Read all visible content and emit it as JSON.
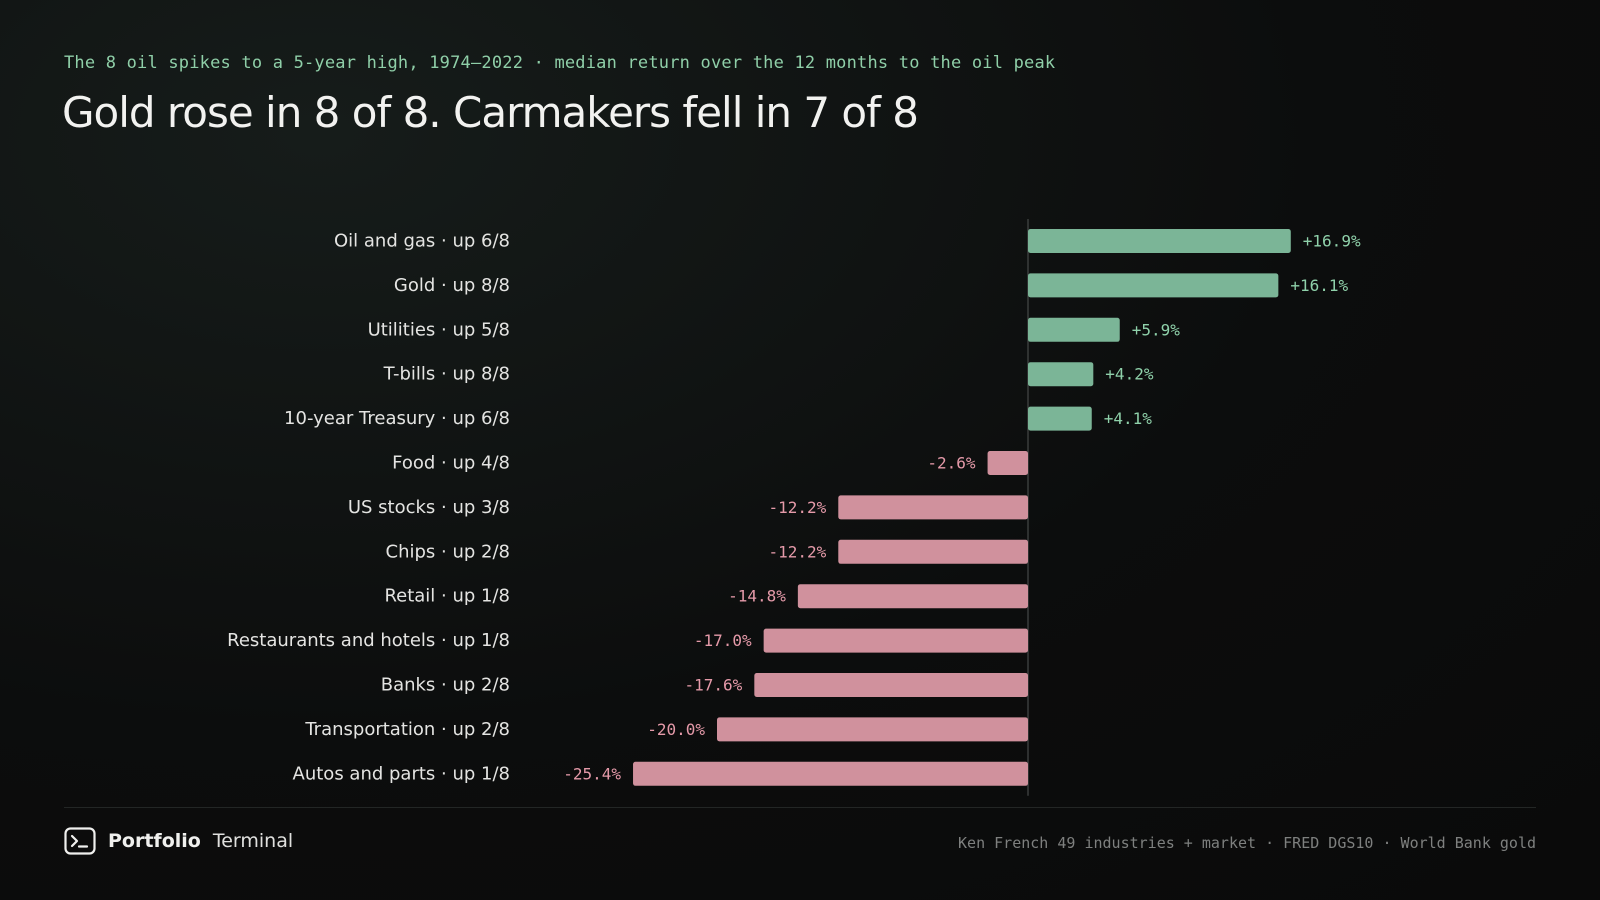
{
  "header": {
    "subtitle": "The 8 oil spikes to a 5-year high, 1974–2022 · median return over the 12 months to the oil peak",
    "title": "Gold rose in 8 of 8. Carmakers fell in 7 of 8"
  },
  "chart_data": {
    "type": "bar",
    "orientation": "horizontal",
    "unit": "%",
    "colors": {
      "positive": "#7bb597",
      "negative": "#d0919d",
      "positive_text": "#8fd1aa",
      "negative_text": "#e59aa9",
      "axis": "#3a3d3c"
    },
    "categories": [
      "Oil and gas · up 6/8",
      "Gold · up 8/8",
      "Utilities · up 5/8",
      "T-bills · up 8/8",
      "10-year Treasury · up 6/8",
      "Food · up 4/8",
      "US stocks · up 3/8",
      "Chips · up 2/8",
      "Retail · up 1/8",
      "Restaurants and hotels · up 1/8",
      "Banks · up 2/8",
      "Transportation · up 2/8",
      "Autos and parts · up 1/8"
    ],
    "values": [
      16.9,
      16.1,
      5.9,
      4.2,
      4.1,
      -2.6,
      -12.2,
      -12.2,
      -14.8,
      -17.0,
      -17.6,
      -20.0,
      -25.4
    ],
    "value_labels": [
      "+16.9%",
      "+16.1%",
      "+5.9%",
      "+4.2%",
      "+4.1%",
      "-2.6%",
      "-12.2%",
      "-12.2%",
      "-14.8%",
      "-17.0%",
      "-17.6%",
      "-20.0%",
      "-25.4%"
    ]
  },
  "footer": {
    "brand_bold": "Portfolio",
    "brand_light": "Terminal",
    "brand_icon": "terminal-prompt-icon",
    "source": "Ken French 49 industries + market · FRED DGS10 · World Bank gold"
  }
}
